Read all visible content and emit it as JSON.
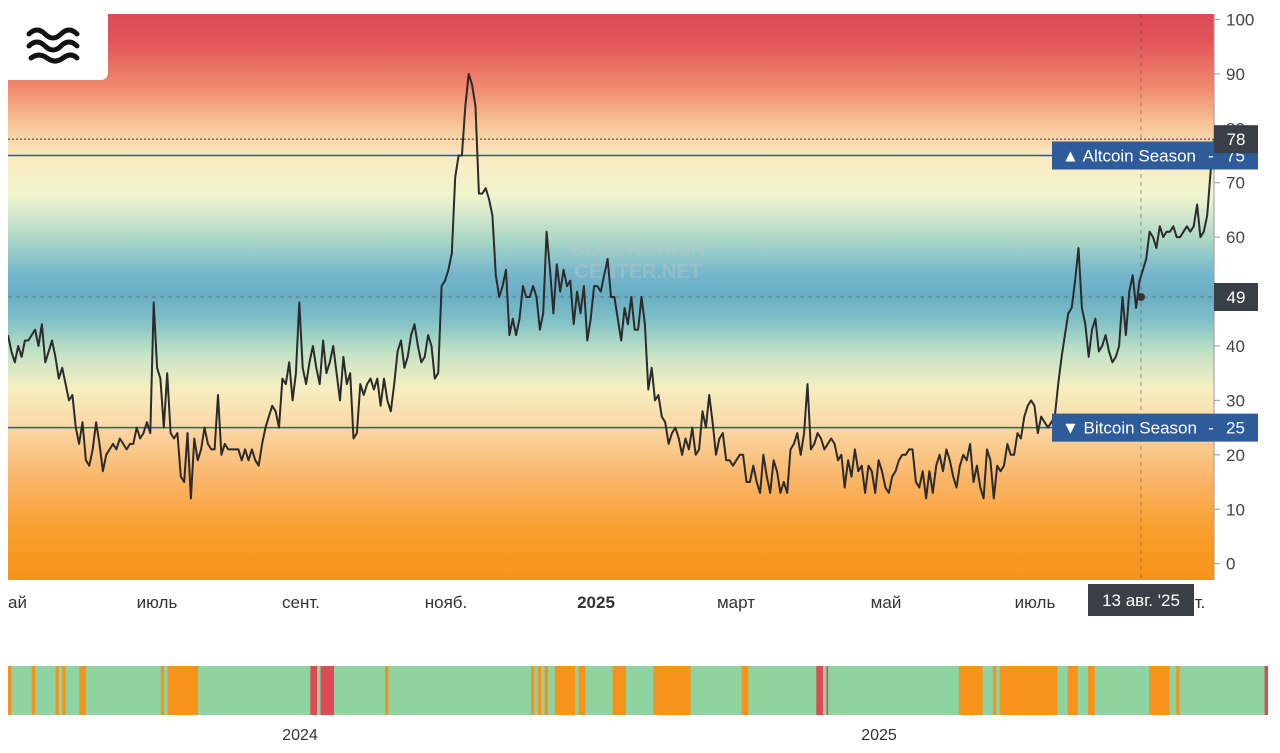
{
  "chart_data": {
    "type": "line",
    "title": "",
    "xlabel": "",
    "ylabel": "",
    "ylim": [
      -3,
      101
    ],
    "y_ticks": [
      "0",
      "10",
      "20",
      "30",
      "40",
      "50",
      "60",
      "70",
      "80",
      "90",
      "100"
    ],
    "x_ticks": [
      "ай",
      "июль",
      "сент.",
      "нояб.",
      "2025",
      "март",
      "май",
      "июль",
      "т."
    ],
    "x_ticks_bold": [
      "2025"
    ],
    "watermark": [
      "BLOCKCHAIN",
      "CENTER.NET"
    ],
    "thresholds": [
      {
        "label": "▲ Altcoin Season",
        "value": "75",
        "y": 75
      },
      {
        "label": "▼ Bitcoin Season",
        "value": "25",
        "y": 25
      }
    ],
    "current_value": {
      "text": "78",
      "y": 78
    },
    "crosshair": {
      "date_label": "13 авг. '25",
      "value_text": "49",
      "y": 49
    },
    "colors": {
      "line": "#2b2b2b",
      "threshold": "#2e5c9a",
      "label_bg": "#2e5c9a",
      "tag_bg": "#3a3f47"
    },
    "series": [
      {
        "values": [
          42,
          39,
          37,
          40,
          38,
          41,
          41,
          42,
          43,
          40,
          44,
          37,
          39,
          41,
          38,
          34,
          36,
          33,
          30,
          31,
          25,
          22,
          26,
          19,
          18,
          21,
          26,
          22,
          17,
          20,
          21,
          22,
          21,
          23,
          22,
          21,
          22,
          22,
          25,
          23,
          24,
          26,
          24,
          48,
          36,
          34,
          25,
          35,
          24,
          23,
          24,
          16,
          15,
          24,
          12,
          23,
          19,
          21,
          25,
          22,
          21,
          21,
          31,
          20,
          22,
          21,
          21,
          21,
          21,
          19,
          21,
          19,
          21,
          19,
          18,
          22,
          25,
          27,
          29,
          28,
          25,
          34,
          33,
          37,
          30,
          35,
          48,
          36,
          33,
          37,
          40,
          36,
          33,
          41,
          35,
          37,
          40,
          35,
          30,
          38,
          33,
          35,
          23,
          24,
          33,
          31,
          33,
          34,
          32,
          34,
          29,
          34,
          30,
          28,
          33,
          39,
          41,
          36,
          38,
          42,
          44,
          40,
          37,
          38,
          42,
          40,
          34,
          35,
          51,
          52,
          54,
          57,
          71,
          75,
          75,
          84,
          90,
          88,
          84,
          68,
          68,
          69,
          67,
          64,
          53,
          49,
          51,
          54,
          42,
          45,
          42,
          45,
          51,
          49,
          49,
          51,
          49,
          43,
          46,
          61,
          54,
          46,
          55,
          50,
          54,
          51,
          52,
          44,
          50,
          46,
          51,
          41,
          45,
          51,
          51,
          50,
          53,
          56,
          49,
          49,
          45,
          41,
          47,
          44,
          49,
          43,
          43,
          49,
          44,
          32,
          36,
          30,
          31,
          27,
          26,
          22,
          24,
          25,
          23,
          20,
          23,
          21,
          25,
          20,
          21,
          28,
          25,
          31,
          26,
          20,
          23,
          24,
          19,
          19,
          18,
          19,
          20,
          20,
          15,
          15,
          18,
          15,
          13,
          20,
          16,
          13,
          19,
          17,
          13,
          15,
          13,
          21,
          22,
          24,
          20,
          24,
          33,
          21,
          22,
          24,
          23,
          21,
          22,
          23,
          22,
          19,
          20,
          14,
          19,
          16,
          21,
          17,
          18,
          13,
          18,
          17,
          13,
          19,
          17,
          14,
          13,
          16,
          17,
          19,
          20,
          20,
          21,
          21,
          15,
          14,
          17,
          12,
          17,
          13,
          18,
          20,
          17,
          21,
          19,
          16,
          14,
          18,
          20,
          19,
          22,
          15,
          18,
          14,
          12,
          21,
          19,
          12,
          18,
          17,
          18,
          22,
          20,
          20,
          24,
          23,
          27,
          29,
          30,
          29,
          24,
          27,
          26,
          25,
          26,
          27,
          33,
          38,
          42,
          46,
          47,
          52,
          58,
          47,
          44,
          38,
          43,
          45,
          39,
          40,
          42,
          39,
          37,
          38,
          40,
          49,
          42,
          50,
          53,
          47,
          52,
          54,
          56,
          61,
          60,
          58,
          62,
          60,
          61,
          61,
          62,
          60,
          60,
          61,
          62,
          61,
          62,
          66,
          60,
          61,
          64,
          72,
          78
        ]
      }
    ],
    "strip": {
      "labels": [
        "2024",
        "2025"
      ],
      "colors": {
        "bitcoin": "#f7931a",
        "neutral": "#8ed3a0",
        "altcoin": "#dc4a55"
      },
      "segments": [
        [
          "orange",
          0,
          1
        ],
        [
          "green",
          1,
          7
        ],
        [
          "orange",
          7,
          8
        ],
        [
          "green",
          8,
          14
        ],
        [
          "orange",
          14,
          15
        ],
        [
          "green",
          15,
          16
        ],
        [
          "orange",
          16,
          17
        ],
        [
          "green",
          17,
          21
        ],
        [
          "orange",
          21,
          23
        ],
        [
          "green",
          23,
          45
        ],
        [
          "orange",
          45,
          46
        ],
        [
          "green",
          46,
          47
        ],
        [
          "orange",
          47,
          56
        ],
        [
          "green",
          56,
          89
        ],
        [
          "red",
          89,
          91
        ],
        [
          "green",
          91,
          92
        ],
        [
          "red",
          92,
          96
        ],
        [
          "green",
          96,
          111
        ],
        [
          "orange",
          111,
          112
        ],
        [
          "green",
          112,
          154
        ],
        [
          "orange",
          154,
          155
        ],
        [
          "green",
          155,
          156
        ],
        [
          "orange",
          156,
          157
        ],
        [
          "green",
          157,
          158
        ],
        [
          "orange",
          158,
          159
        ],
        [
          "green",
          159,
          161
        ],
        [
          "orange",
          161,
          166
        ],
        [
          "orange",
          166,
          167
        ],
        [
          "green",
          167,
          168
        ],
        [
          "orange",
          168,
          170
        ],
        [
          "green",
          170,
          178
        ],
        [
          "orange",
          178,
          181
        ],
        [
          "orange",
          181,
          182
        ],
        [
          "green",
          182,
          190
        ],
        [
          "orange",
          190,
          191
        ],
        [
          "orange",
          191,
          200
        ],
        [
          "orange",
          200,
          201
        ],
        [
          "green",
          201,
          216
        ],
        [
          "orange",
          216,
          218
        ],
        [
          "green",
          218,
          238
        ],
        [
          "red",
          238,
          240
        ],
        [
          "green",
          240,
          241
        ],
        [
          "red",
          241,
          241.5
        ],
        [
          "green",
          241.5,
          280
        ],
        [
          "orange",
          280,
          287
        ],
        [
          "green",
          287,
          290
        ],
        [
          "orange",
          290,
          291
        ],
        [
          "green",
          291,
          292
        ],
        [
          "orange",
          292,
          309
        ],
        [
          "green",
          309,
          312
        ],
        [
          "orange",
          312,
          315
        ],
        [
          "green",
          315,
          318
        ],
        [
          "orange",
          318,
          320
        ],
        [
          "green",
          320,
          336
        ],
        [
          "orange",
          336,
          342
        ],
        [
          "green",
          342,
          344
        ],
        [
          "orange",
          344,
          345
        ],
        [
          "green",
          345,
          370
        ],
        [
          "red",
          370,
          371
        ]
      ]
    }
  }
}
